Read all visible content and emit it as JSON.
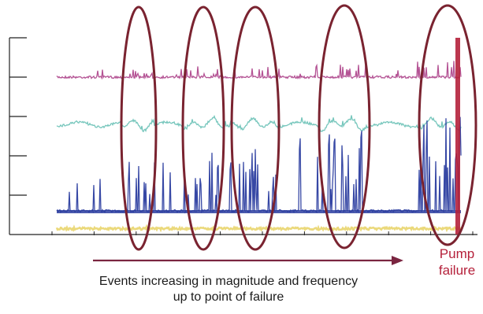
{
  "chart_data": {
    "type": "line",
    "title": "",
    "xlabel": "",
    "ylabel": "",
    "x_ticks": 11,
    "y_ticks": 6,
    "grid": false,
    "series": [
      {
        "color": "#b04a8e",
        "level": 0.8,
        "spikiness": 0.55
      },
      {
        "color": "#6fc3b8",
        "level": 0.56,
        "spikiness": 0.35
      },
      {
        "color": "#2c3ea0",
        "level": 0.12,
        "spikiness": 1.0
      },
      {
        "color": "#e6cf5a",
        "level": 0.03,
        "spikiness": 0.1
      }
    ],
    "event_markers": [
      {
        "label": "event-1"
      },
      {
        "label": "event-2"
      },
      {
        "label": "event-3"
      },
      {
        "label": "event-4"
      },
      {
        "label": "event-5"
      }
    ],
    "failure_line_color": "#b5213b",
    "annotation": {
      "text_line1": "Events increasing in magnitude and frequency",
      "text_line2": "up to point of failure",
      "arrow_color": "#7a2540"
    },
    "failure_label": {
      "line1": "Pump",
      "line2": "failure",
      "color": "#b5213b"
    },
    "ellipse_color": "#7a2330"
  }
}
